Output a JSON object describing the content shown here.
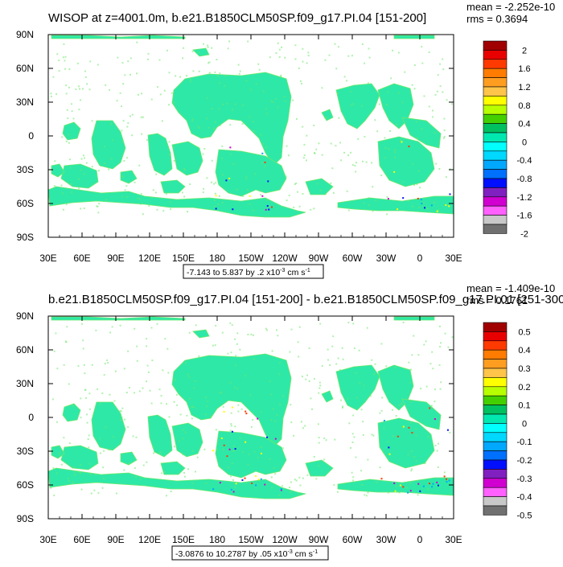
{
  "chart_data": [
    {
      "type": "heatmap",
      "title": "WISOP at z=4001.0m, b.e21.B1850CLM50SP.f09_g17.PI.04 [151-200]",
      "stats": {
        "mean": "mean = -2.252e-10",
        "rms": "rms = 0.3694"
      },
      "xticks": [
        "30E",
        "60E",
        "90E",
        "120E",
        "150E",
        "180",
        "150W",
        "120W",
        "90W",
        "60W",
        "30W",
        "0",
        "30E"
      ],
      "yticks": [
        "90N",
        "60N",
        "30N",
        "0",
        "30S",
        "60S",
        "90S"
      ],
      "range_text": "-7.143 to 5.837 by .2 x10",
      "range_exp": "-3",
      "range_units": " cm s",
      "range_units_exp": "-1",
      "colorbar": {
        "labels": [
          "2",
          "1.6",
          "1.2",
          "0.8",
          "0.4",
          "0",
          "-0.4",
          "-0.8",
          "-1.2",
          "-1.6",
          "-2"
        ],
        "colors": [
          "#a00000",
          "#e80000",
          "#ff3a00",
          "#ff7c00",
          "#ff9d20",
          "#ffc44a",
          "#ffff00",
          "#b8ff00",
          "#44d000",
          "#00c060",
          "#00e8b0",
          "#00ffff",
          "#00d8ff",
          "#00a8ff",
          "#0070ff",
          "#0010ff",
          "#8020c0",
          "#d000d0",
          "#ff60ff",
          "#c8c8c8",
          "#707070"
        ]
      }
    },
    {
      "type": "heatmap",
      "title": "b.e21.B1850CLM50SP.f09_g17.PI.04 [151-200] - b.e21.B1850CLM50SP.f09_g17.PI.01 [251-300]",
      "stats": {
        "mean": "mean = -1.409e-10",
        "rms": "rms = 0.1761"
      },
      "xticks": [
        "30E",
        "60E",
        "90E",
        "120E",
        "150E",
        "180",
        "150W",
        "120W",
        "90W",
        "60W",
        "30W",
        "0",
        "30E"
      ],
      "yticks": [
        "90N",
        "60N",
        "30N",
        "0",
        "30S",
        "60S",
        "90S"
      ],
      "range_text": "-3.0876 to 10.2787 by .05 x10",
      "range_exp": "-3",
      "range_units": " cm s",
      "range_units_exp": "-1",
      "colorbar": {
        "labels": [
          "0.5",
          "0.4",
          "0.3",
          "0.2",
          "0.1",
          "0",
          "-0.1",
          "-0.2",
          "-0.3",
          "-0.4",
          "-0.5"
        ],
        "colors": [
          "#a00000",
          "#e80000",
          "#ff3a00",
          "#ff7c00",
          "#ff9d20",
          "#ffc44a",
          "#ffff00",
          "#b8ff00",
          "#44d000",
          "#00c060",
          "#00e8b0",
          "#00ffff",
          "#00d8ff",
          "#00a8ff",
          "#0070ff",
          "#0010ff",
          "#8020c0",
          "#d000d0",
          "#ff60ff",
          "#c8c8c8",
          "#707070"
        ]
      }
    }
  ],
  "map_colors": {
    "land_main": "#2ee8a8",
    "land_alt": "#6ee86a",
    "ocean": "#ffffff"
  }
}
